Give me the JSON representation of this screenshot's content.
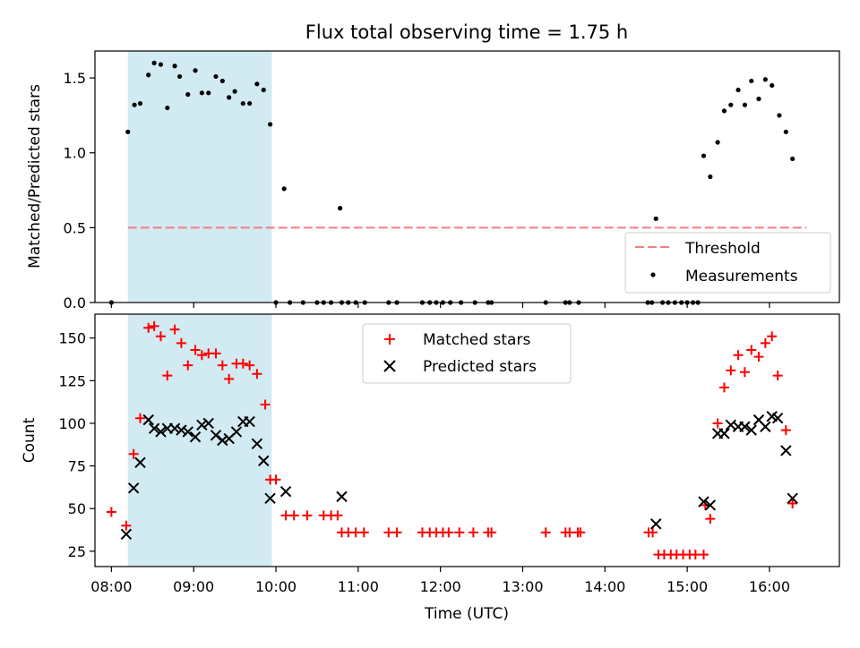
{
  "chart_data": {
    "title": "Flux total observing time = 1.75 h",
    "xlabel": "Time (UTC)",
    "xticks": [
      "08:00",
      "09:00",
      "10:00",
      "11:00",
      "12:00",
      "13:00",
      "14:00",
      "15:00",
      "16:00"
    ],
    "x_range_hours": [
      7.8,
      16.85
    ],
    "observing_window_hours": [
      8.2,
      9.95
    ],
    "observing_window_color": "#add8e6",
    "panels": [
      {
        "type": "scatter",
        "ylabel": "Matched/Predicted stars",
        "ylim": [
          0,
          1.68
        ],
        "yticks": [
          "0.0",
          "0.5",
          "1.0",
          "1.5"
        ],
        "threshold": {
          "name": "Threshold",
          "value": 0.5,
          "x": [
            8.2,
            16.45
          ],
          "color": "#f08080"
        },
        "legend": {
          "placement": "lower-right",
          "entries": [
            "Threshold",
            "Measurements"
          ]
        },
        "series": [
          {
            "name": "Measurements",
            "color": "#000000",
            "marker": "dot",
            "points": [
              [
                8.2,
                1.14
              ],
              [
                8.28,
                1.32
              ],
              [
                8.35,
                1.33
              ],
              [
                8.45,
                1.52
              ],
              [
                8.52,
                1.6
              ],
              [
                8.6,
                1.59
              ],
              [
                8.68,
                1.3
              ],
              [
                8.77,
                1.58
              ],
              [
                8.83,
                1.51
              ],
              [
                8.93,
                1.39
              ],
              [
                9.02,
                1.55
              ],
              [
                9.1,
                1.4
              ],
              [
                9.18,
                1.4
              ],
              [
                9.27,
                1.51
              ],
              [
                9.35,
                1.48
              ],
              [
                9.43,
                1.37
              ],
              [
                9.5,
                1.41
              ],
              [
                9.6,
                1.33
              ],
              [
                9.68,
                1.33
              ],
              [
                9.77,
                1.46
              ],
              [
                9.85,
                1.42
              ],
              [
                9.93,
                1.19
              ],
              [
                10.1,
                0.76
              ],
              [
                10.78,
                0.63
              ],
              [
                14.62,
                0.56
              ],
              [
                15.2,
                0.98
              ],
              [
                15.28,
                0.84
              ],
              [
                15.37,
                1.07
              ],
              [
                15.45,
                1.28
              ],
              [
                15.53,
                1.32
              ],
              [
                15.62,
                1.42
              ],
              [
                15.7,
                1.32
              ],
              [
                15.78,
                1.48
              ],
              [
                15.87,
                1.36
              ],
              [
                15.95,
                1.49
              ],
              [
                16.03,
                1.45
              ],
              [
                16.12,
                1.25
              ],
              [
                16.2,
                1.14
              ],
              [
                16.28,
                0.96
              ],
              [
                8.0,
                0
              ],
              [
                10.0,
                0
              ],
              [
                10.17,
                0
              ],
              [
                10.33,
                0
              ],
              [
                10.5,
                0
              ],
              [
                10.58,
                0
              ],
              [
                10.67,
                0
              ],
              [
                10.8,
                0
              ],
              [
                10.88,
                0
              ],
              [
                10.97,
                0
              ],
              [
                11.08,
                0
              ],
              [
                11.37,
                0
              ],
              [
                11.47,
                0
              ],
              [
                11.78,
                0
              ],
              [
                11.87,
                0
              ],
              [
                11.95,
                0
              ],
              [
                12.03,
                0
              ],
              [
                12.12,
                0
              ],
              [
                12.25,
                0
              ],
              [
                12.42,
                0
              ],
              [
                12.58,
                0
              ],
              [
                12.62,
                0
              ],
              [
                13.28,
                0
              ],
              [
                13.52,
                0
              ],
              [
                13.57,
                0
              ],
              [
                13.68,
                0
              ],
              [
                14.52,
                0
              ],
              [
                14.57,
                0
              ],
              [
                14.7,
                0
              ],
              [
                14.77,
                0
              ],
              [
                14.85,
                0
              ],
              [
                14.93,
                0
              ],
              [
                15.0,
                0
              ],
              [
                15.07,
                0
              ],
              [
                15.13,
                0
              ]
            ]
          }
        ]
      },
      {
        "type": "scatter",
        "ylabel": "Count",
        "ylim": [
          16,
          164
        ],
        "yticks": [
          "25",
          "50",
          "75",
          "100",
          "125",
          "150"
        ],
        "legend": {
          "placement": "upper-center",
          "entries": [
            "Matched stars",
            "Predicted stars"
          ]
        },
        "series": [
          {
            "name": "Matched stars",
            "color": "#ff0000",
            "marker": "plus",
            "points": [
              [
                8.0,
                48
              ],
              [
                8.18,
                40
              ],
              [
                8.27,
                82
              ],
              [
                8.35,
                103
              ],
              [
                8.45,
                156
              ],
              [
                8.52,
                157
              ],
              [
                8.6,
                151
              ],
              [
                8.68,
                128
              ],
              [
                8.77,
                155
              ],
              [
                8.85,
                147
              ],
              [
                8.93,
                134
              ],
              [
                9.02,
                143
              ],
              [
                9.1,
                140
              ],
              [
                9.18,
                141
              ],
              [
                9.27,
                141
              ],
              [
                9.35,
                134
              ],
              [
                9.43,
                126
              ],
              [
                9.52,
                135
              ],
              [
                9.6,
                135
              ],
              [
                9.68,
                134
              ],
              [
                9.77,
                129
              ],
              [
                9.87,
                111
              ],
              [
                9.93,
                67
              ],
              [
                10.0,
                67
              ],
              [
                10.12,
                46
              ],
              [
                10.22,
                46
              ],
              [
                10.38,
                46
              ],
              [
                10.58,
                46
              ],
              [
                10.67,
                46
              ],
              [
                10.75,
                46
              ],
              [
                10.8,
                36
              ],
              [
                10.88,
                36
              ],
              [
                10.97,
                36
              ],
              [
                11.07,
                36
              ],
              [
                11.37,
                36
              ],
              [
                11.47,
                36
              ],
              [
                11.78,
                36
              ],
              [
                11.87,
                36
              ],
              [
                11.95,
                36
              ],
              [
                12.03,
                36
              ],
              [
                12.1,
                36
              ],
              [
                12.23,
                36
              ],
              [
                12.4,
                36
              ],
              [
                12.58,
                36
              ],
              [
                12.62,
                36
              ],
              [
                13.28,
                36
              ],
              [
                13.52,
                36
              ],
              [
                13.57,
                36
              ],
              [
                13.67,
                36
              ],
              [
                13.7,
                36
              ],
              [
                14.53,
                36
              ],
              [
                14.58,
                36
              ],
              [
                14.65,
                23
              ],
              [
                14.72,
                23
              ],
              [
                14.8,
                23
              ],
              [
                14.87,
                23
              ],
              [
                14.95,
                23
              ],
              [
                15.03,
                23
              ],
              [
                15.1,
                23
              ],
              [
                15.2,
                23
              ],
              [
                15.22,
                52
              ],
              [
                15.28,
                44
              ],
              [
                15.37,
                100
              ],
              [
                15.45,
                121
              ],
              [
                15.53,
                131
              ],
              [
                15.62,
                140
              ],
              [
                15.7,
                130
              ],
              [
                15.78,
                143
              ],
              [
                15.87,
                139
              ],
              [
                15.95,
                147
              ],
              [
                16.03,
                151
              ],
              [
                16.1,
                128
              ],
              [
                16.2,
                96
              ],
              [
                16.28,
                53
              ]
            ]
          },
          {
            "name": "Predicted stars",
            "color": "#000000",
            "marker": "x",
            "points": [
              [
                8.18,
                35
              ],
              [
                8.27,
                62
              ],
              [
                8.35,
                77
              ],
              [
                8.45,
                102
              ],
              [
                8.52,
                97
              ],
              [
                8.6,
                95
              ],
              [
                8.68,
                97
              ],
              [
                8.77,
                97
              ],
              [
                8.85,
                96
              ],
              [
                8.93,
                95
              ],
              [
                9.02,
                92
              ],
              [
                9.1,
                99
              ],
              [
                9.18,
                100
              ],
              [
                9.27,
                93
              ],
              [
                9.35,
                90
              ],
              [
                9.43,
                91
              ],
              [
                9.52,
                95
              ],
              [
                9.6,
                101
              ],
              [
                9.68,
                101
              ],
              [
                9.77,
                88
              ],
              [
                9.85,
                78
              ],
              [
                9.93,
                56
              ],
              [
                10.12,
                60
              ],
              [
                10.8,
                57
              ],
              [
                14.62,
                41
              ],
              [
                15.2,
                54
              ],
              [
                15.28,
                52
              ],
              [
                15.37,
                94
              ],
              [
                15.45,
                94
              ],
              [
                15.53,
                99
              ],
              [
                15.62,
                98
              ],
              [
                15.7,
                98
              ],
              [
                15.78,
                96
              ],
              [
                15.87,
                102
              ],
              [
                15.95,
                98
              ],
              [
                16.03,
                104
              ],
              [
                16.1,
                103
              ],
              [
                16.2,
                84
              ],
              [
                16.28,
                56
              ]
            ]
          }
        ]
      }
    ]
  }
}
